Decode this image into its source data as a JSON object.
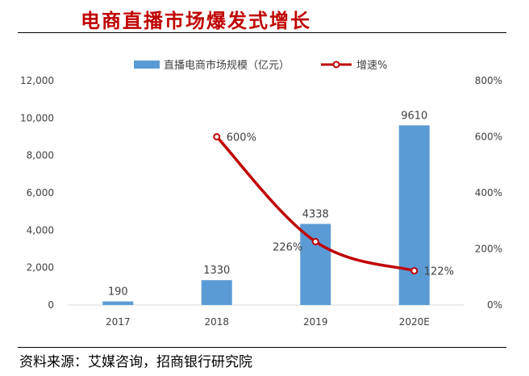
{
  "title": "电商直播市场爆发式增长",
  "source": "资料来源：艾媒咨询，招商银行研究院",
  "colors": {
    "bar": "#5b9bd5",
    "line": "#c00000",
    "title": "#c00000"
  },
  "chart_data": {
    "type": "bar+line",
    "categories": [
      "2017",
      "2018",
      "2019",
      "2020E"
    ],
    "bar_series": {
      "name": "直播电商市场规模（亿元）",
      "values": [
        190,
        1330,
        4338,
        9610
      ],
      "value_labels": [
        "190",
        "1330",
        "4338",
        "9610"
      ]
    },
    "line_series": {
      "name": "增速%",
      "values": [
        null,
        600,
        226,
        122
      ],
      "value_labels": [
        "",
        "600%",
        "226%",
        "122%"
      ]
    },
    "y_left": {
      "min": 0,
      "max": 12000,
      "ticks": [
        "0",
        "2,000",
        "4,000",
        "6,000",
        "8,000",
        "10,000",
        "12,000"
      ]
    },
    "y_right": {
      "min": 0,
      "max": 800,
      "ticks": [
        "0%",
        "200%",
        "400%",
        "600%",
        "800%"
      ]
    },
    "legend_position": "top",
    "grid": false
  }
}
